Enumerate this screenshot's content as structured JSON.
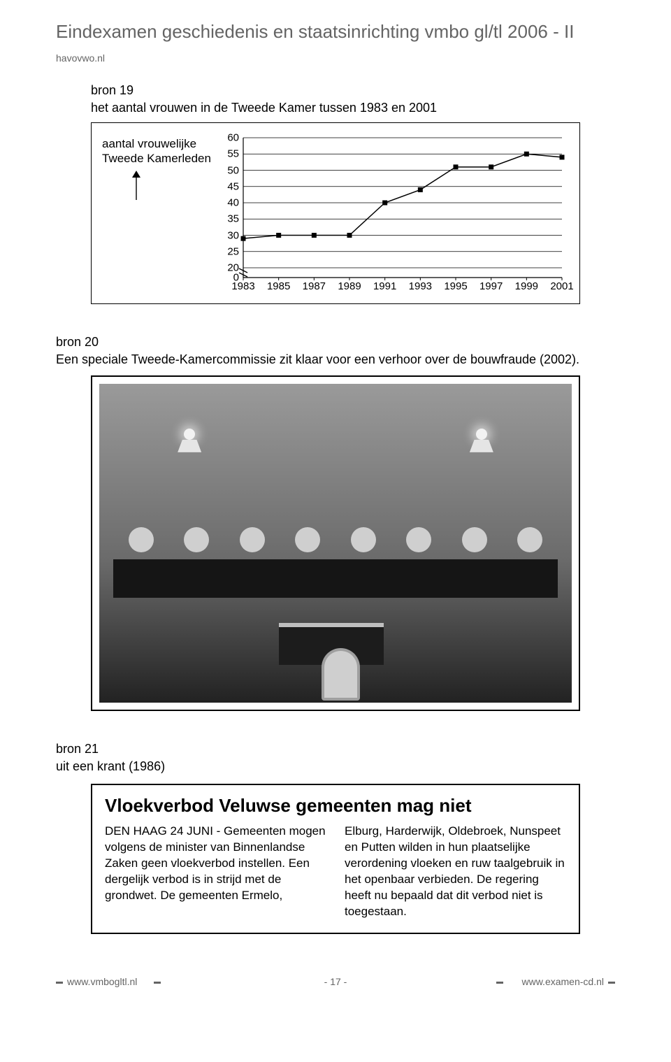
{
  "doc": {
    "title": "Eindexamen geschiedenis en staatsinrichting vmbo gl/tl  2006 - II",
    "subtitle": "havovwo.nl"
  },
  "bron19": {
    "label": "bron 19",
    "caption": "het aantal vrouwen in de Tweede Kamer tussen 1983 en 2001",
    "ylabel_line1": "aantal vrouwelijke",
    "ylabel_line2": "Tweede Kamerleden",
    "chart": {
      "type": "line",
      "xvalues": [
        1983,
        1985,
        1987,
        1989,
        1991,
        1993,
        1995,
        1997,
        1999,
        2001
      ],
      "yvalues": [
        29,
        30,
        30,
        30,
        40,
        44,
        51,
        51,
        55,
        54
      ],
      "yticks": [
        0,
        20,
        25,
        30,
        35,
        40,
        45,
        50,
        55,
        60
      ],
      "xlim": [
        1983,
        2001
      ],
      "ylim_segments": [
        [
          0,
          0
        ],
        [
          20,
          60
        ]
      ],
      "line_color": "#000000",
      "marker": "square",
      "marker_size": 7,
      "marker_fill": "#000000",
      "line_width": 1.5,
      "grid_color": "#000000",
      "background": "#ffffff",
      "axis_break": true,
      "label_fontsize": 15
    }
  },
  "bron20": {
    "label": "bron 20",
    "caption": "Een speciale Tweede-Kamercommissie zit klaar voor een verhoor over de bouwfraude (2002)."
  },
  "bron21": {
    "label": "bron 21",
    "caption": "uit een krant (1986)",
    "headline": "Vloekverbod Veluwse gemeenten mag niet",
    "col1": "DEN HAAG 24 JUNI - Gemeenten mogen volgens de minister van Binnenlandse Zaken geen vloekverbod instellen.\nEen dergelijk verbod is in strijd met de grondwet. De gemeenten Ermelo,",
    "col2": "Elburg, Harderwijk, Oldebroek, Nunspeet en Putten wilden in hun plaatselijke verordening vloeken en ruw taalgebruik in het openbaar verbieden. De regering heeft nu bepaald dat dit verbod niet is toegestaan."
  },
  "footer": {
    "left": "www.vmbogltl.nl",
    "center": "- 17 -",
    "right": "www.examen-cd.nl"
  }
}
